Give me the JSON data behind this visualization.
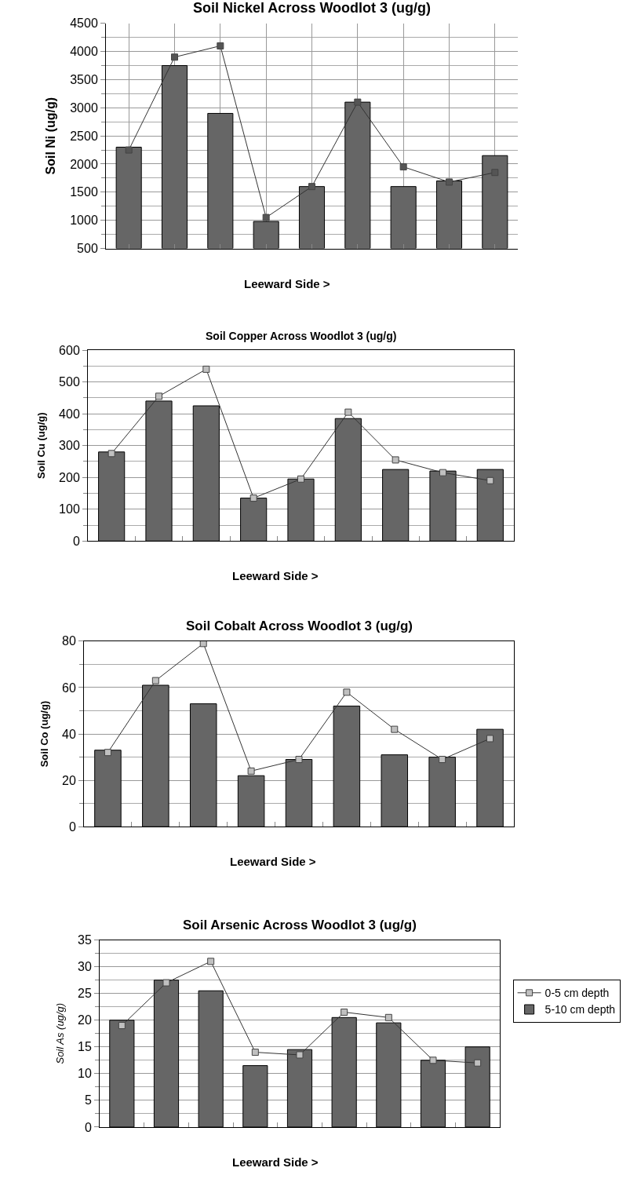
{
  "chart_data": [
    {
      "type": "bar",
      "title": "Soil Nickel Across Woodlot 3 (ug/g)",
      "ylabel": "Soil Ni (ug/g)",
      "annotations": [
        "Leeward Side >"
      ],
      "categories": [
        null,
        null,
        null,
        null,
        null,
        null,
        null,
        null,
        null
      ],
      "ylim": [
        500,
        4500
      ],
      "yticks": [
        500,
        1000,
        1500,
        2000,
        2500,
        3000,
        3500,
        4000,
        4500
      ],
      "grid": true,
      "marker": "square",
      "series": [
        {
          "type": "line",
          "color": "#555555",
          "values": [
            2250,
            3900,
            4100,
            1050,
            1600,
            3100,
            1950,
            1680,
            1850
          ]
        },
        {
          "color": "#666666",
          "values": [
            2300,
            3750,
            2900,
            980,
            1600,
            3100,
            1600,
            1700,
            2150
          ]
        }
      ]
    },
    {
      "type": "bar",
      "title": "Soil Copper Across Woodlot 3 (ug/g)",
      "ylabel": "Soil Cu (ug/g)",
      "annotations": [
        "Leeward Side >"
      ],
      "categories": [
        null,
        null,
        null,
        null,
        null,
        null,
        null,
        null,
        null
      ],
      "ylim": [
        0,
        600
      ],
      "yticks": [
        0,
        100,
        200,
        300,
        400,
        500,
        600
      ],
      "grid": "y",
      "marker": "square",
      "series": [
        {
          "type": "line",
          "color": "#c0c0c0",
          "values": [
            275,
            455,
            540,
            135,
            195,
            405,
            255,
            215,
            190
          ]
        },
        {
          "color": "#666666",
          "values": [
            280,
            440,
            425,
            135,
            195,
            385,
            225,
            220,
            225
          ]
        }
      ]
    },
    {
      "type": "bar",
      "title": "Soil Cobalt Across Woodlot 3 (ug/g)",
      "ylabel": "Soil Co (ug/g)",
      "annotations": [
        "Leeward Side >"
      ],
      "categories": [
        null,
        null,
        null,
        null,
        null,
        null,
        null,
        null,
        null
      ],
      "ylim": [
        0,
        80
      ],
      "yticks": [
        0,
        20,
        40,
        60,
        80
      ],
      "grid": "y",
      "marker": "square",
      "series": [
        {
          "type": "line",
          "color": "#c0c0c0",
          "values": [
            32,
            63,
            79,
            24,
            29,
            58,
            42,
            29,
            38
          ]
        },
        {
          "color": "#666666",
          "values": [
            33,
            61,
            53,
            22,
            29,
            52,
            31,
            30,
            42
          ]
        }
      ]
    },
    {
      "type": "bar",
      "title": "Soil Arsenic Across Woodlot 3 (ug/g)",
      "ylabel": "Soil As (ug/g)",
      "annotations": [
        "Leeward Side >"
      ],
      "categories": [
        null,
        null,
        null,
        null,
        null,
        null,
        null,
        null,
        null
      ],
      "ylim": [
        0,
        35
      ],
      "yticks": [
        0,
        5,
        10,
        15,
        20,
        25,
        30,
        35
      ],
      "grid": "y",
      "marker": "square",
      "legend": "right",
      "series": [
        {
          "type": "line",
          "name": "0-5 cm depth",
          "color": "#c0c0c0",
          "values": [
            19,
            27,
            31,
            14,
            13.5,
            21.5,
            20.5,
            12.5,
            12
          ]
        },
        {
          "name": "5-10 cm depth",
          "color": "#666666",
          "values": [
            20,
            27.5,
            25.5,
            11.5,
            14.5,
            20.5,
            19.5,
            12.5,
            15
          ]
        }
      ]
    }
  ]
}
